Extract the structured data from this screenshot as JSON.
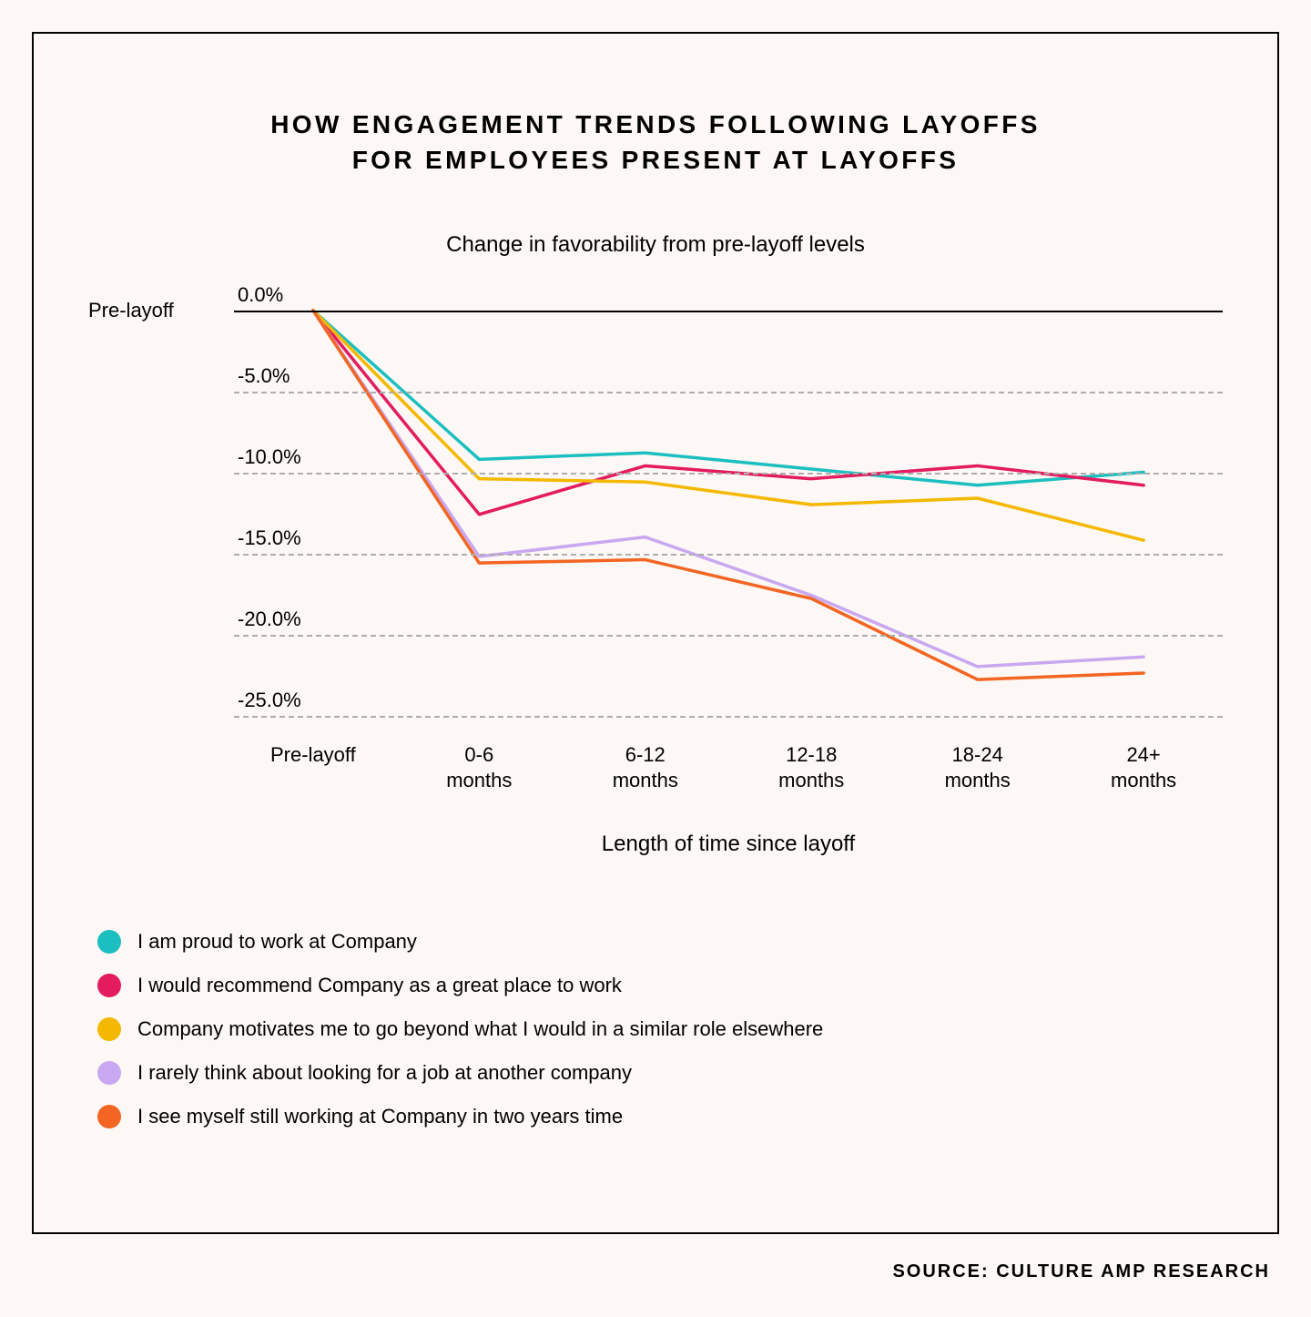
{
  "title_line1": "HOW ENGAGEMENT TRENDS FOLLOWING LAYOFFS",
  "title_line2": "FOR EMPLOYEES PRESENT AT LAYOFFS",
  "subtitle": "Change in favorability from pre-layoff levels",
  "source": "SOURCE: CULTURE AMP RESEARCH",
  "x_axis_title": "Length of time since layoff",
  "y_left_label": "Pre-layoff",
  "chart": {
    "type": "line",
    "x_categories": [
      "Pre-layoff",
      "0-6\nmonths",
      "6-12\nmonths",
      "12-18\nmonths",
      "18-24\nmonths",
      "24+\nmonths"
    ],
    "y_ticks": [
      0.0,
      -5.0,
      -10.0,
      -15.0,
      -20.0,
      -25.0
    ],
    "y_tick_labels": [
      "0.0%",
      "-5.0%",
      "-10.0%",
      "-15.0%",
      "-20.0%",
      "-25.0%"
    ],
    "ylim": [
      -26.0,
      1.0
    ],
    "background_color": "#fdf8f5",
    "grid_color": "#adadad",
    "zero_line_color": "#000000",
    "line_width": 3.5,
    "series": [
      {
        "name": "I am proud to work at Company",
        "color": "#1bbfbf",
        "values": [
          0.0,
          -9.2,
          -8.8,
          -9.8,
          -10.8,
          -10.0
        ]
      },
      {
        "name": "I would recommend Company as a great place to work",
        "color": "#e31b5f",
        "values": [
          0.0,
          -12.6,
          -9.6,
          -10.4,
          -9.6,
          -10.8
        ]
      },
      {
        "name": "Company motivates me to go beyond what I would in a similar role elsewhere",
        "color": "#f5b800",
        "values": [
          0.0,
          -10.4,
          -10.6,
          -12.0,
          -11.6,
          -14.2
        ]
      },
      {
        "name": "I rarely think about looking for a job at another company",
        "color": "#c8a8f0",
        "values": [
          0.0,
          -15.2,
          -14.0,
          -17.6,
          -22.0,
          -21.4
        ]
      },
      {
        "name": "I see myself still working at Company in two years time",
        "color": "#f26522",
        "values": [
          0.0,
          -15.6,
          -15.4,
          -17.8,
          -22.8,
          -22.4
        ]
      }
    ]
  }
}
